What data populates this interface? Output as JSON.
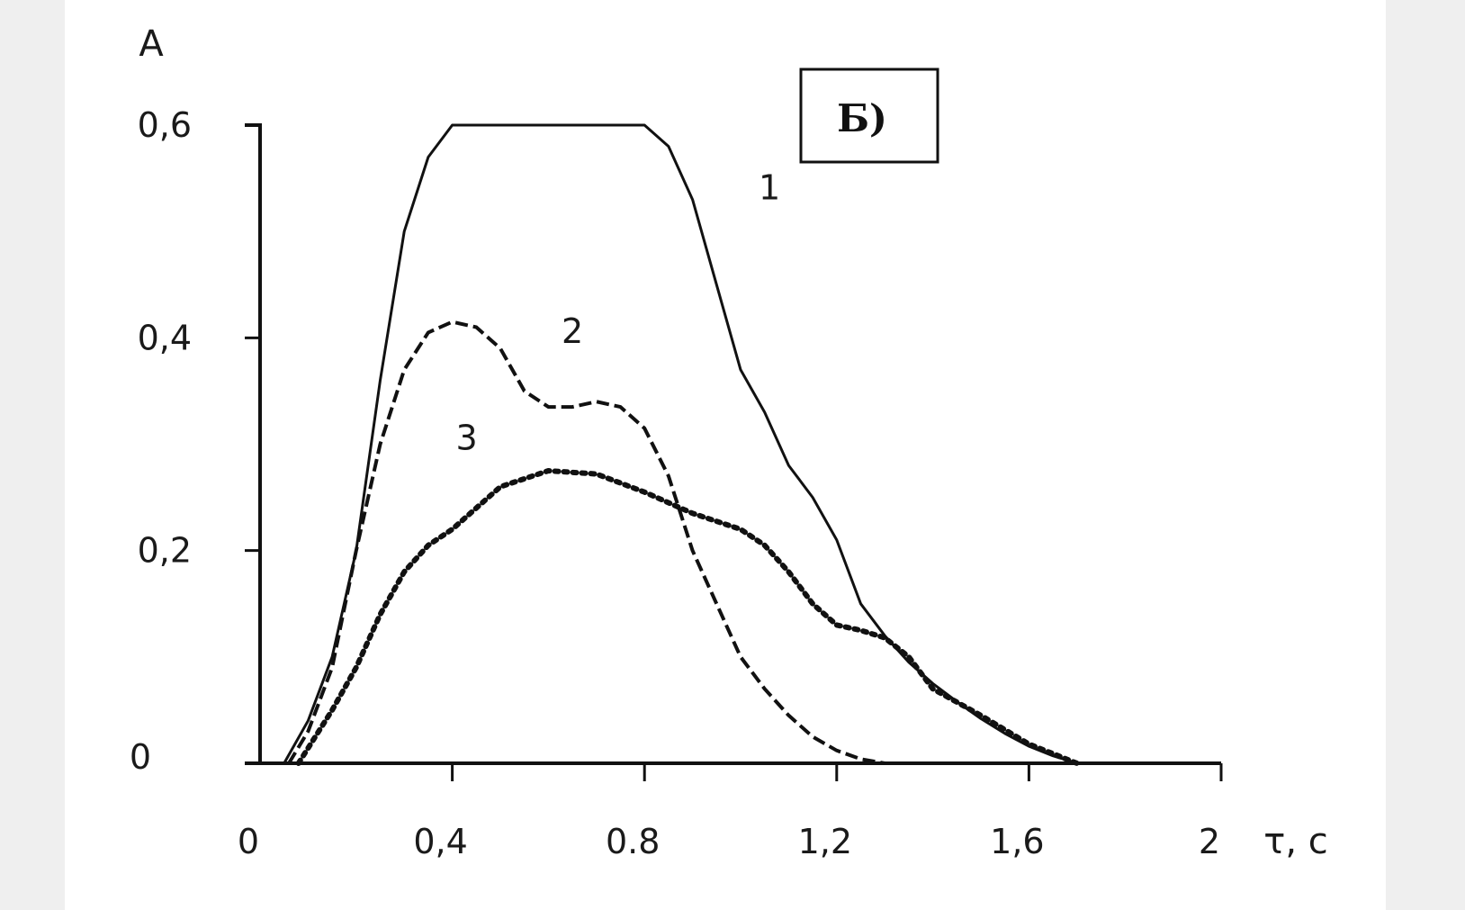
{
  "chart_data": {
    "type": "line",
    "title": "",
    "panel_label": "Б)",
    "ylabel": "A",
    "xlabel": "τ, c",
    "xlim": [
      0,
      2
    ],
    "ylim": [
      0,
      0.6
    ],
    "x_ticks": [
      {
        "value": 0,
        "label": "0"
      },
      {
        "value": 0.4,
        "label": "0,4"
      },
      {
        "value": 0.8,
        "label": "0.8"
      },
      {
        "value": 1.2,
        "label": "1,2"
      },
      {
        "value": 1.6,
        "label": "1,6"
      },
      {
        "value": 2.0,
        "label": "2"
      }
    ],
    "y_ticks": [
      {
        "value": 0,
        "label": "0"
      },
      {
        "value": 0.2,
        "label": "0,2"
      },
      {
        "value": 0.4,
        "label": "0,4"
      },
      {
        "value": 0.6,
        "label": "0,6"
      }
    ],
    "grid": false,
    "series": [
      {
        "name": "1",
        "style": "solid",
        "label_at": [
          1.06,
          0.53
        ],
        "x": [
          0.05,
          0.1,
          0.15,
          0.2,
          0.25,
          0.3,
          0.35,
          0.4,
          0.5,
          0.6,
          0.7,
          0.8,
          0.85,
          0.9,
          0.95,
          1.0,
          1.05,
          1.1,
          1.15,
          1.2,
          1.25,
          1.3,
          1.35,
          1.4,
          1.45,
          1.5,
          1.55,
          1.6,
          1.65,
          1.7
        ],
        "y": [
          0.0,
          0.04,
          0.1,
          0.2,
          0.36,
          0.5,
          0.57,
          0.6,
          0.6,
          0.6,
          0.6,
          0.6,
          0.58,
          0.53,
          0.45,
          0.37,
          0.33,
          0.28,
          0.25,
          0.21,
          0.15,
          0.12,
          0.095,
          0.075,
          0.058,
          0.042,
          0.028,
          0.016,
          0.007,
          0.0
        ]
      },
      {
        "name": "2",
        "style": "dashed",
        "label_at": [
          0.65,
          0.395
        ],
        "x": [
          0.06,
          0.1,
          0.15,
          0.2,
          0.25,
          0.3,
          0.35,
          0.4,
          0.45,
          0.5,
          0.55,
          0.6,
          0.65,
          0.7,
          0.75,
          0.8,
          0.85,
          0.9,
          0.95,
          1.0,
          1.05,
          1.1,
          1.15,
          1.2,
          1.25,
          1.3
        ],
        "y": [
          0.0,
          0.03,
          0.09,
          0.2,
          0.3,
          0.37,
          0.405,
          0.415,
          0.41,
          0.39,
          0.35,
          0.335,
          0.335,
          0.34,
          0.335,
          0.315,
          0.27,
          0.2,
          0.15,
          0.1,
          0.07,
          0.045,
          0.025,
          0.012,
          0.004,
          0.0
        ]
      },
      {
        "name": "3",
        "style": "dotted",
        "label_at": [
          0.43,
          0.295
        ],
        "x": [
          0.08,
          0.15,
          0.2,
          0.25,
          0.3,
          0.35,
          0.4,
          0.5,
          0.6,
          0.7,
          0.8,
          0.9,
          1.0,
          1.05,
          1.1,
          1.15,
          1.2,
          1.25,
          1.3,
          1.35,
          1.4,
          1.5,
          1.6,
          1.7
        ],
        "y": [
          0.0,
          0.05,
          0.09,
          0.14,
          0.18,
          0.205,
          0.22,
          0.26,
          0.275,
          0.272,
          0.255,
          0.235,
          0.22,
          0.205,
          0.18,
          0.15,
          0.13,
          0.125,
          0.118,
          0.1,
          0.07,
          0.045,
          0.018,
          0.0
        ]
      }
    ]
  }
}
